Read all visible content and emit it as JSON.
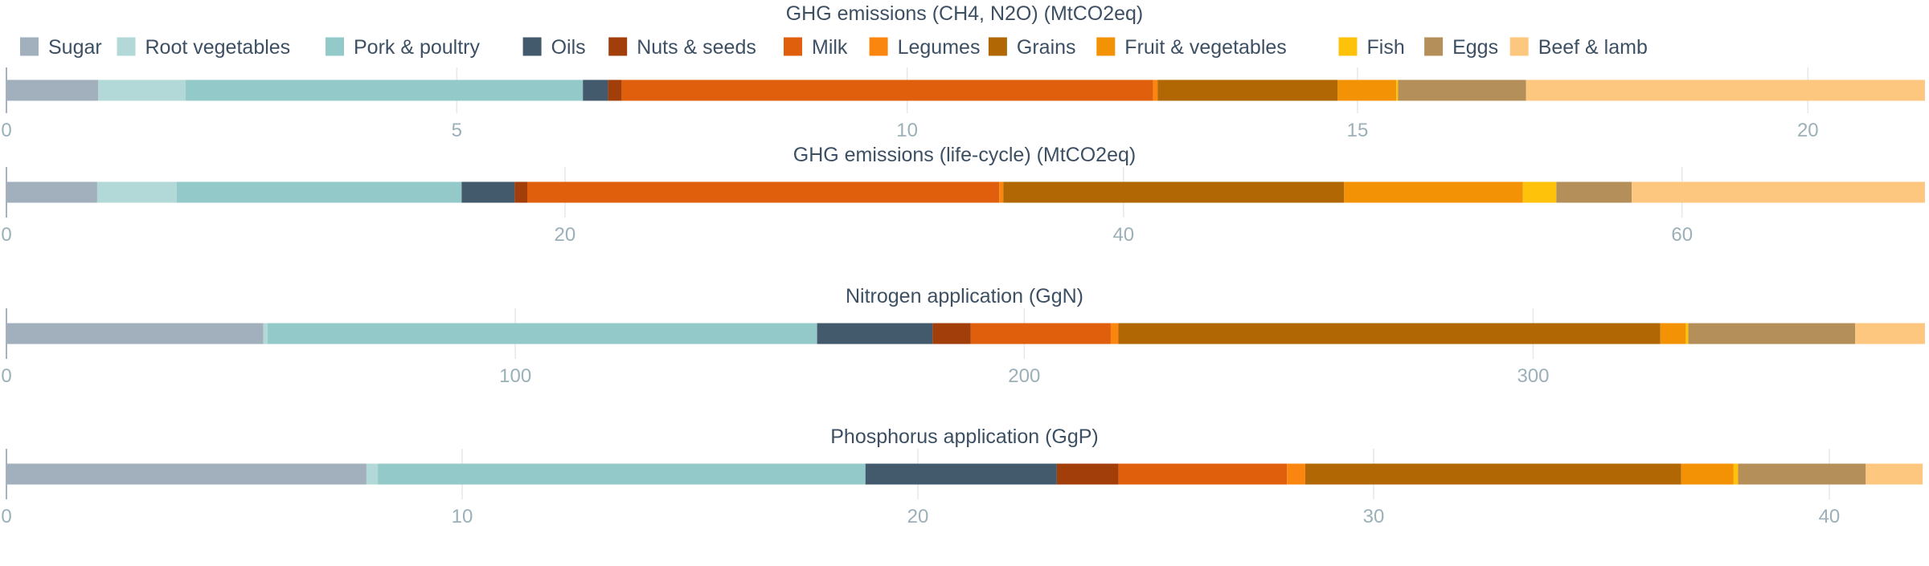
{
  "legend": {
    "items": [
      {
        "name": "Sugar",
        "color": "#a2afbd"
      },
      {
        "name": "Root vegetables",
        "color": "#b3d8d8"
      },
      {
        "name": "Pork & poultry",
        "color": "#93c9c9"
      },
      {
        "name": "Oils",
        "color": "#435a6d"
      },
      {
        "name": "Nuts & seeds",
        "color": "#a23e09"
      },
      {
        "name": "Milk",
        "color": "#e05f0d"
      },
      {
        "name": "Legumes",
        "color": "#fa860f"
      },
      {
        "name": "Grains",
        "color": "#b16704"
      },
      {
        "name": "Fruit & vegetables",
        "color": "#f39205"
      },
      {
        "name": "Fish",
        "color": "#ffc20a"
      },
      {
        "name": "Eggs",
        "color": "#b58f5a"
      },
      {
        "name": "Beef & lamb",
        "color": "#fdc77f"
      }
    ]
  },
  "chart_data": [
    {
      "type": "bar",
      "orientation": "horizontal",
      "stacked": true,
      "title": "GHG emissions (CH4, N2O) (MtCO2eq)",
      "xlim": [
        0,
        21.3
      ],
      "ticks": [
        0,
        5,
        10,
        15,
        20
      ],
      "grid": true,
      "segments": [
        {
          "name": "Sugar",
          "value": 1.02
        },
        {
          "name": "Root vegetables",
          "value": 0.97
        },
        {
          "name": "Pork & poultry",
          "value": 4.41
        },
        {
          "name": "Oils",
          "value": 0.28
        },
        {
          "name": "Nuts & seeds",
          "value": 0.15
        },
        {
          "name": "Milk",
          "value": 5.9
        },
        {
          "name": "Legumes",
          "value": 0.05
        },
        {
          "name": "Grains",
          "value": 2.0
        },
        {
          "name": "Fruit & vegetables",
          "value": 0.65
        },
        {
          "name": "Fish",
          "value": 0.02
        },
        {
          "name": "Eggs",
          "value": 1.42
        },
        {
          "name": "Beef & lamb",
          "value": 4.43
        }
      ]
    },
    {
      "type": "bar",
      "orientation": "horizontal",
      "stacked": true,
      "title": "GHG emissions (life-cycle) (MtCO2eq)",
      "xlim": [
        0,
        68.7
      ],
      "ticks": [
        0,
        20,
        40,
        60
      ],
      "grid": true,
      "segments": [
        {
          "name": "Sugar",
          "value": 3.25
        },
        {
          "name": "Root vegetables",
          "value": 2.85
        },
        {
          "name": "Pork & poultry",
          "value": 10.2
        },
        {
          "name": "Oils",
          "value": 1.9
        },
        {
          "name": "Nuts & seeds",
          "value": 0.45
        },
        {
          "name": "Milk",
          "value": 16.9
        },
        {
          "name": "Legumes",
          "value": 0.15
        },
        {
          "name": "Grains",
          "value": 12.2
        },
        {
          "name": "Fruit & vegetables",
          "value": 6.4
        },
        {
          "name": "Fish",
          "value": 1.2
        },
        {
          "name": "Eggs",
          "value": 2.7
        },
        {
          "name": "Beef & lamb",
          "value": 10.5
        }
      ]
    },
    {
      "type": "bar",
      "orientation": "horizontal",
      "stacked": true,
      "title": "Nitrogen application (GgN)",
      "xlim": [
        0,
        377
      ],
      "ticks": [
        0,
        100,
        200,
        300
      ],
      "grid": true,
      "segments": [
        {
          "name": "Sugar",
          "value": 50.5
        },
        {
          "name": "Root vegetables",
          "value": 0.8
        },
        {
          "name": "Pork & poultry",
          "value": 108.0
        },
        {
          "name": "Oils",
          "value": 22.7
        },
        {
          "name": "Nuts & seeds",
          "value": 7.5
        },
        {
          "name": "Milk",
          "value": 27.5
        },
        {
          "name": "Legumes",
          "value": 1.5
        },
        {
          "name": "Grains",
          "value": 106.5
        },
        {
          "name": "Fruit & vegetables",
          "value": 5.0
        },
        {
          "name": "Fish",
          "value": 0.5
        },
        {
          "name": "Eggs",
          "value": 32.8
        },
        {
          "name": "Beef & lamb",
          "value": 13.7
        }
      ]
    },
    {
      "type": "bar",
      "orientation": "horizontal",
      "stacked": true,
      "title": "Phosphorus application (GgP)",
      "xlim": [
        0,
        42.1
      ],
      "ticks": [
        0,
        10,
        20,
        30,
        40
      ],
      "grid": true,
      "segments": [
        {
          "name": "Sugar",
          "value": 7.9
        },
        {
          "name": "Root vegetables",
          "value": 0.25
        },
        {
          "name": "Pork & poultry",
          "value": 10.7
        },
        {
          "name": "Oils",
          "value": 4.2
        },
        {
          "name": "Nuts & seeds",
          "value": 1.35
        },
        {
          "name": "Milk",
          "value": 3.7
        },
        {
          "name": "Legumes",
          "value": 0.4
        },
        {
          "name": "Grains",
          "value": 8.25
        },
        {
          "name": "Fruit & vegetables",
          "value": 1.15
        },
        {
          "name": "Fish",
          "value": 0.1
        },
        {
          "name": "Eggs",
          "value": 2.8
        },
        {
          "name": "Beef & lamb",
          "value": 1.25
        }
      ]
    }
  ]
}
